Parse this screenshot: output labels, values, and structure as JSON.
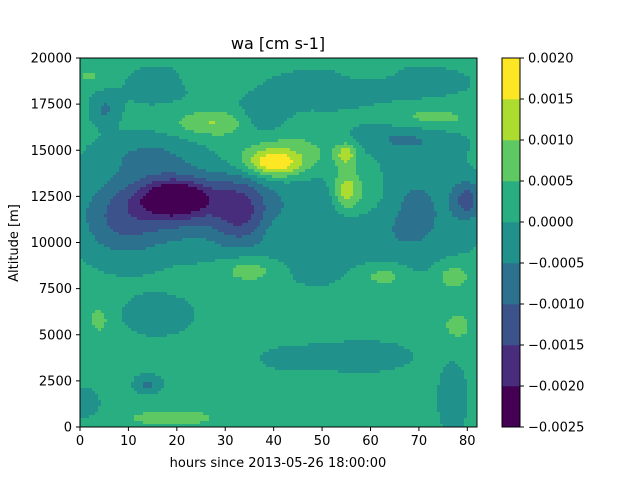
{
  "chart_data": {
    "type": "heatmap",
    "title": "wa [cm s-1]",
    "xlabel": "hours since 2013-05-26 18:00:00",
    "ylabel": "Altitude [m]",
    "xlim": [
      0,
      82
    ],
    "ylim": [
      0,
      20000
    ],
    "x_ticks": [
      0,
      10,
      20,
      30,
      40,
      50,
      60,
      70,
      80
    ],
    "y_ticks": [
      0,
      2500,
      5000,
      7500,
      10000,
      12500,
      15000,
      17500,
      20000
    ],
    "colorbar": {
      "levels": [
        -0.0025,
        -0.002,
        -0.0015,
        -0.001,
        -0.0005,
        0.0,
        0.0005,
        0.001,
        0.0015,
        0.002
      ],
      "tick_labels": [
        "−0.0025",
        "−0.0020",
        "−0.0015",
        "−0.0010",
        "−0.0005",
        "0.0000",
        "0.0005",
        "0.0010",
        "0.0015",
        "0.0020"
      ],
      "colors": [
        "#440154",
        "#472d7b",
        "#3b528b",
        "#2c728e",
        "#21918c",
        "#28ae80",
        "#5ec962",
        "#addc30",
        "#fde725"
      ]
    },
    "background_level": 0.0002,
    "features": [
      {
        "x": 20,
        "y": 12400,
        "sx": 5,
        "sy": 700,
        "amp": -0.0022
      },
      {
        "x": 18,
        "y": 12000,
        "sx": 10,
        "sy": 1500,
        "amp": -0.0012
      },
      {
        "x": 8,
        "y": 11000,
        "sx": 6,
        "sy": 1500,
        "amp": -0.0008
      },
      {
        "x": 33,
        "y": 11800,
        "sx": 4,
        "sy": 1300,
        "amp": -0.0013
      },
      {
        "x": 45,
        "y": 11500,
        "sx": 12,
        "sy": 2500,
        "amp": -0.0006
      },
      {
        "x": 68,
        "y": 11500,
        "sx": 9,
        "sy": 2500,
        "amp": -0.0008
      },
      {
        "x": 80,
        "y": 12300,
        "sx": 2,
        "sy": 700,
        "amp": -0.0012
      },
      {
        "x": 14,
        "y": 14800,
        "sx": 8,
        "sy": 800,
        "amp": -0.0006
      },
      {
        "x": 37,
        "y": 16600,
        "sx": 4,
        "sy": 700,
        "amp": -0.0007
      },
      {
        "x": 67,
        "y": 15700,
        "sx": 8,
        "sy": 600,
        "amp": -0.0006
      },
      {
        "x": 70,
        "y": 18700,
        "sx": 9,
        "sy": 700,
        "amp": -0.0004
      },
      {
        "x": 40,
        "y": 14300,
        "sx": 4,
        "sy": 500,
        "amp": 0.0016
      },
      {
        "x": 43,
        "y": 14800,
        "sx": 9,
        "sy": 1000,
        "amp": 0.0007
      },
      {
        "x": 28,
        "y": 16500,
        "sx": 6,
        "sy": 500,
        "amp": 0.0009
      },
      {
        "x": 55,
        "y": 12800,
        "sx": 2,
        "sy": 800,
        "amp": 0.0013
      },
      {
        "x": 55,
        "y": 14800,
        "sx": 1.5,
        "sy": 400,
        "amp": 0.0011
      },
      {
        "x": 60,
        "y": 12500,
        "sx": 4,
        "sy": 1200,
        "amp": 0.0007
      },
      {
        "x": 42,
        "y": 10500,
        "sx": 3,
        "sy": 700,
        "amp": 0.0004
      },
      {
        "x": 35,
        "y": 8500,
        "sx": 4,
        "sy": 500,
        "amp": 0.0008
      },
      {
        "x": 63,
        "y": 8200,
        "sx": 4,
        "sy": 500,
        "amp": 0.0007
      },
      {
        "x": 77,
        "y": 8200,
        "sx": 3,
        "sy": 600,
        "amp": 0.0007
      },
      {
        "x": 72,
        "y": 16700,
        "sx": 7,
        "sy": 500,
        "amp": 0.0006
      },
      {
        "x": 4,
        "y": 5800,
        "sx": 1.3,
        "sy": 500,
        "amp": 0.0007
      },
      {
        "x": 78,
        "y": 5500,
        "sx": 2,
        "sy": 500,
        "amp": 0.0006
      },
      {
        "x": 19,
        "y": 500,
        "sx": 6,
        "sy": 300,
        "amp": 0.0007
      },
      {
        "x": 16,
        "y": 6000,
        "sx": 8,
        "sy": 1200,
        "amp": -0.0003
      },
      {
        "x": 14,
        "y": 2300,
        "sx": 2,
        "sy": 350,
        "amp": -0.0008
      },
      {
        "x": 1,
        "y": 1300,
        "sx": 2,
        "sy": 500,
        "amp": -0.0007
      },
      {
        "x": 77,
        "y": 1500,
        "sx": 2,
        "sy": 1200,
        "amp": -0.0007
      },
      {
        "x": 43,
        "y": 3700,
        "sx": 6,
        "sy": 600,
        "amp": -0.0003
      },
      {
        "x": 59,
        "y": 3800,
        "sx": 8,
        "sy": 700,
        "amp": -0.0004
      },
      {
        "x": 50,
        "y": 18300,
        "sx": 10,
        "sy": 900,
        "amp": -0.0004
      },
      {
        "x": 16,
        "y": 18500,
        "sx": 8,
        "sy": 1200,
        "amp": -0.0003
      },
      {
        "x": 5,
        "y": 17200,
        "sx": 2,
        "sy": 600,
        "amp": -0.0007
      },
      {
        "x": 2,
        "y": 19000,
        "sx": 3,
        "sy": 400,
        "amp": 0.0004
      },
      {
        "x": 27,
        "y": 19000,
        "sx": 3,
        "sy": 500,
        "amp": 0.0004
      },
      {
        "x": 60,
        "y": 19200,
        "sx": 4,
        "sy": 400,
        "amp": 0.0004
      },
      {
        "x": 62,
        "y": 9000,
        "sx": 5,
        "sy": 1500,
        "amp": 0.0001
      }
    ]
  }
}
